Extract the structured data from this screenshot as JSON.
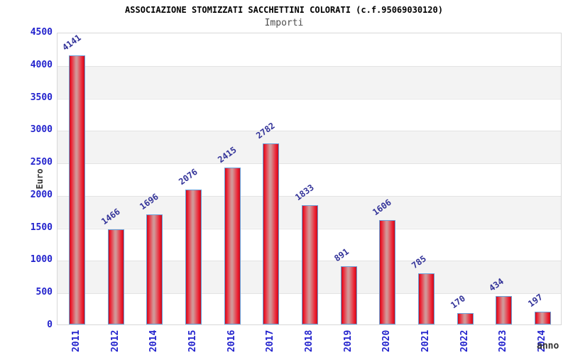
{
  "chart_data": {
    "type": "bar",
    "title": "ASSOCIAZIONE STOMIZZATI SACCHETTINI COLORATI (c.f.95069030120)",
    "subtitle": "Importi",
    "xlabel": "anno",
    "ylabel": "Euro",
    "categories": [
      "2011",
      "2012",
      "2014",
      "2015",
      "2016",
      "2017",
      "2018",
      "2019",
      "2020",
      "2021",
      "2022",
      "2023",
      "2024"
    ],
    "values": [
      4141,
      1466,
      1696,
      2076,
      2415,
      2782,
      1833,
      891,
      1606,
      785,
      170,
      434,
      197
    ],
    "ylim": [
      0,
      4500
    ],
    "ytick_step": 500,
    "yticks": [
      4500,
      4000,
      3500,
      3000,
      2500,
      2000,
      1500,
      1000,
      500,
      0
    ],
    "grid": "alternating horizontal bands every 500, white then gray from top",
    "legend_position": "none",
    "bar_value_labels_rotated": true,
    "x_labels_rotated_degrees": -90
  },
  "colors": {
    "tick_label": "#2323cd",
    "value_label": "#333399",
    "title_text": "#000000",
    "subtitle_text": "#4d4d4d",
    "axis_title_text": "#333333",
    "band_white": "#ffffff",
    "band_gray": "#f3f3f3",
    "grid_line": "#e3e3e3",
    "plot_border": "#d8d8d8",
    "bar_border": "#6a9fd8",
    "bar_red_dark": "#c00f1e",
    "bar_red": "#ee1c2e",
    "bar_highlight": "#d29697"
  }
}
